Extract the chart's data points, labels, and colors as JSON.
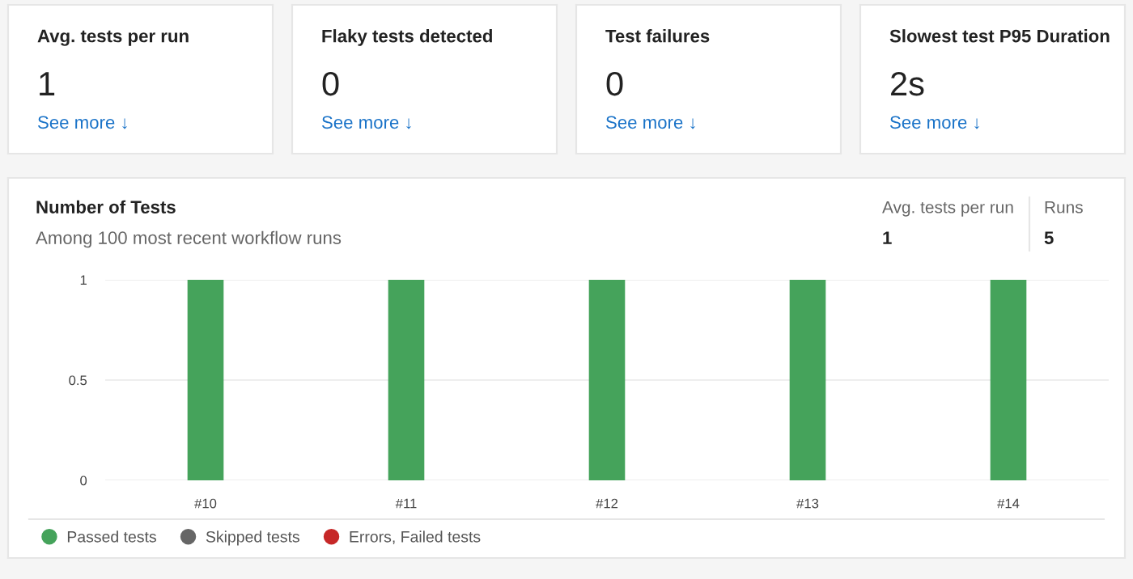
{
  "chart_data": [
    {
      "type": "other",
      "annotations": [
        "Avg. tests per run",
        "1",
        "See more ↓",
        "Flaky tests detected",
        "0",
        "See more ↓",
        "Test failures",
        "0",
        "See more ↓",
        "Slowest test P95 Duration",
        "2s",
        "See more ↓"
      ]
    },
    {
      "type": "bar",
      "title": "Number of Tests",
      "subtitle": "Among 100 most recent workflow runs",
      "categories": [
        "#10",
        "#11",
        "#12",
        "#13",
        "#14"
      ],
      "series": [
        {
          "name": "Passed tests",
          "color": "#45a35b",
          "values": [
            1,
            1,
            1,
            1,
            1
          ]
        },
        {
          "name": "Skipped tests",
          "color": "#666666",
          "values": [
            0,
            0,
            0,
            0,
            0
          ]
        },
        {
          "name": "Errors, Failed tests",
          "color": "#c62828",
          "values": [
            0,
            0,
            0,
            0,
            0
          ]
        }
      ],
      "ylim": [
        0,
        1
      ],
      "yticks": [
        0,
        0.5,
        1
      ],
      "grid": "y",
      "legend": "bottom left",
      "annotations": [
        "Avg. tests per run",
        "1",
        "Runs",
        "5"
      ]
    }
  ]
}
